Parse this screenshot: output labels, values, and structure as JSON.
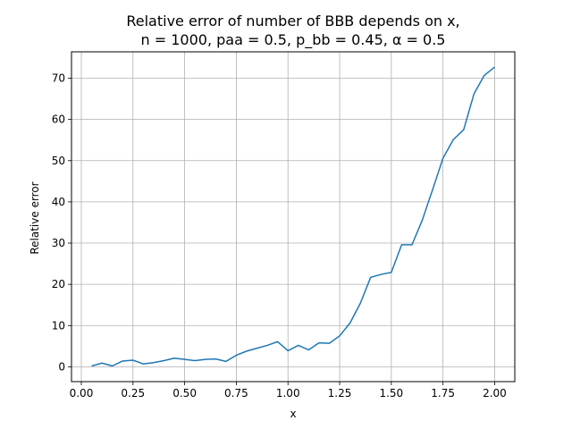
{
  "chart_data": {
    "type": "line",
    "title": [
      "Relative error of number of BBB depends on x,",
      "n = 1000, paa = 0.5, p_bb = 0.45, α = 0.5"
    ],
    "xlabel": "x",
    "ylabel": "Relative error",
    "xlim": [
      -0.0475,
      2.0975
    ],
    "ylim": [
      -3.6,
      76.4
    ],
    "xticks": [
      0.0,
      0.25,
      0.5,
      0.75,
      1.0,
      1.25,
      1.5,
      1.75,
      2.0
    ],
    "xtick_labels": [
      "0.00",
      "0.25",
      "0.50",
      "0.75",
      "1.00",
      "1.25",
      "1.50",
      "1.75",
      "2.00"
    ],
    "yticks": [
      0,
      10,
      20,
      30,
      40,
      50,
      60,
      70
    ],
    "ytick_labels": [
      "0",
      "10",
      "20",
      "30",
      "40",
      "50",
      "60",
      "70"
    ],
    "grid": true,
    "series": [
      {
        "color": "#1f77b4",
        "x": [
          0.05,
          0.1,
          0.15,
          0.2,
          0.25,
          0.3,
          0.35,
          0.4,
          0.45,
          0.5,
          0.55,
          0.6,
          0.65,
          0.7,
          0.75,
          0.8,
          0.85,
          0.9,
          0.95,
          1.0,
          1.05,
          1.1,
          1.15,
          1.2,
          1.25,
          1.3,
          1.35,
          1.4,
          1.45,
          1.5,
          1.55,
          1.6,
          1.65,
          1.7,
          1.75,
          1.8,
          1.85,
          1.9,
          1.95,
          2.0
        ],
        "y": [
          0.2,
          0.9,
          0.2,
          1.4,
          1.6,
          0.7,
          1.0,
          1.5,
          2.1,
          1.8,
          1.5,
          1.8,
          1.9,
          1.3,
          2.8,
          3.8,
          4.5,
          5.2,
          6.1,
          3.9,
          5.2,
          4.1,
          5.8,
          5.7,
          7.5,
          10.6,
          15.4,
          21.7,
          22.4,
          22.9,
          29.6,
          29.6,
          35.6,
          43.0,
          50.6,
          55.1,
          57.5,
          66.2,
          70.7,
          72.7
        ]
      }
    ]
  }
}
